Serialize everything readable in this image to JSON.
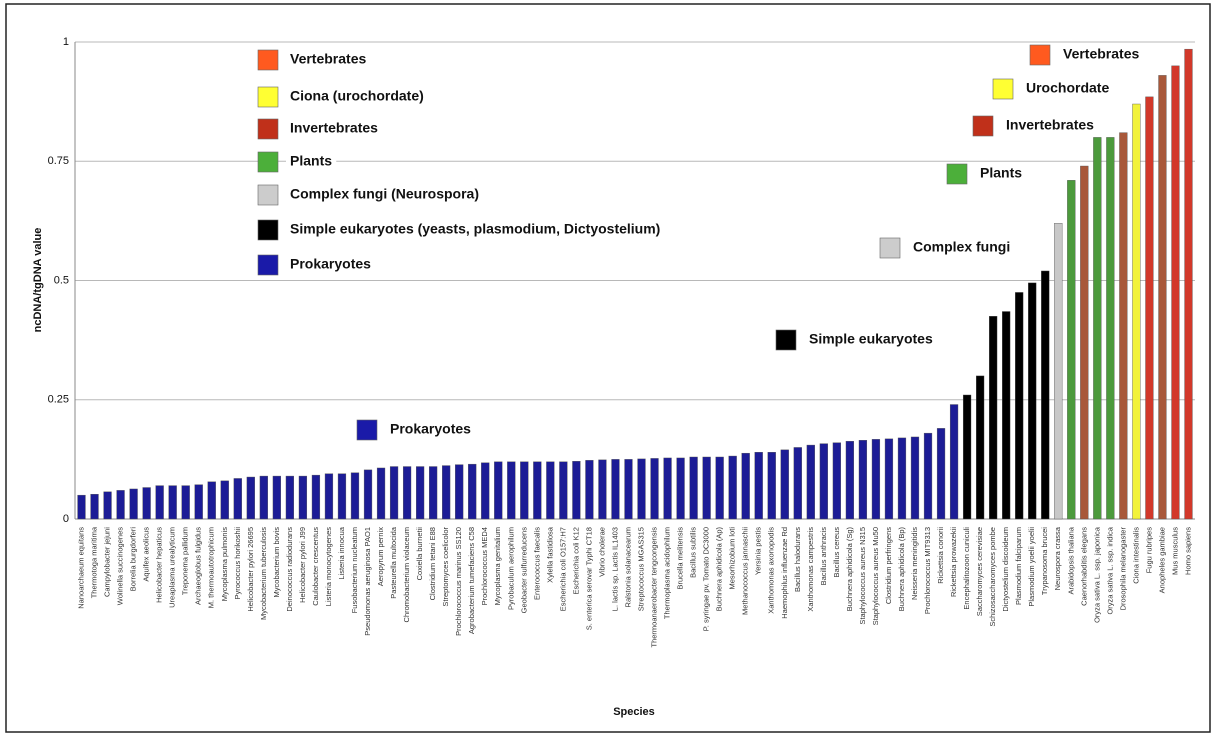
{
  "chart_data": {
    "type": "bar",
    "x_label": "Species",
    "y_label": "ncDNA/tgDNA value",
    "ylim": [
      0,
      1
    ],
    "yticks": [
      0,
      0.25,
      0.5,
      0.75,
      1
    ],
    "grid": true,
    "categories": [
      "Nanoarchaeum equitans",
      "Thermotoga maritima",
      "Campylobacter jejuni",
      "Wolinella succinogenes",
      "Borrelia burgdorferi",
      "Aquifex aeolicus",
      "Helicobacter hepaticus",
      "Ureaplasma urealyticum",
      "Treponema pallidum",
      "Archaeoglobus fulgidus",
      "M. thermoautotrophicum",
      "Mycoplasma pulmonis",
      "Pyrococcus horikoshii",
      "Helicobacter pylori 26695",
      "Mycobacterium tuberculosis",
      "Mycobacterium bovis",
      "Deinococcus radiodurans",
      "Helicobacter pylori J99",
      "Caulobacter crescentus",
      "Listeria monocytogenes",
      "Listeria innocua",
      "Fusobacterium nucleatum",
      "Pseudomonas aeruginosa PAO1",
      "Aeropyrum pernix",
      "Pasteurella multocida",
      "Chromobacterium violaceum",
      "Coxiella burnetii",
      "Clostridium tetani E88",
      "Streptomyces coelicolor",
      "Prochlorococcus marinus SS120",
      "Agrobacterium tumefaciens C58",
      "Prochlorococcus MED4",
      "Mycoplasma genitalium",
      "Pyrobaculum aerophilum",
      "Geobacter sulfurreducens",
      "Enterococcus faecalis",
      "Xylella fastidiosa",
      "Escherichia coli O157:H7",
      "Escherichia coli K12",
      "S. enterica serovar Typhi CT18",
      "Vibrio cholerae",
      "L. lactis sp. Lactis IL1403",
      "Ralstonia solanacearum",
      "Streptococcus MGAS315",
      "Thermoanaerobacter tengcongensis",
      "Thermoplasma acidophilum",
      "Brucella melitensis",
      "Bacillus subtilis",
      "P. syringae pv. Tomato DC3000",
      "Buchnera aphidicola (Ap)",
      "Mesorhizobium loti",
      "Methanococcus jannaschii",
      "Yersinia pestis",
      "Xanthomonas axonopodis",
      "Haemophilus influenzae Rd",
      "Bacillus halodurans",
      "Xanthomonas campestris",
      "Bacillus anthracis",
      "Bacillus cereus",
      "Buchnera aphidicola (Sg)",
      "Staphylococcus aureus N315",
      "Staphylococcus aureus Mu50",
      "Clostridium perfringens",
      "Buchnera aphidicola (Bp)",
      "Neisseria meningitidis",
      "Prochlorococcus MIT9313",
      "Rickettsia conorii",
      "Rickettsia prowazekii",
      "Encephalitozoon cuniculi",
      "Saccharomyces cerevisiae",
      "Schizosaccharomyces pombe",
      "Dictyostelium discoideum",
      "Plasmodium falciparum",
      "Plasmodium yoelii yoelii",
      "Trypanosoma brucei",
      "Neurospora crassa",
      "Arabidopsis thaliana",
      "Caenorhabditis elegans",
      "Oryza sativa L. ssp. japonica",
      "Oryza sativa L. ssp. indica",
      "Drosophila melanogaster",
      "Ciona intestinalis",
      "Fugu rubripes",
      "Anopheles gambiae",
      "Mus musculus",
      "Homo sapiens"
    ],
    "values": [
      0.05,
      0.052,
      0.057,
      0.06,
      0.063,
      0.066,
      0.07,
      0.07,
      0.07,
      0.072,
      0.078,
      0.08,
      0.085,
      0.088,
      0.09,
      0.09,
      0.09,
      0.09,
      0.092,
      0.095,
      0.095,
      0.097,
      0.103,
      0.107,
      0.11,
      0.11,
      0.11,
      0.11,
      0.112,
      0.114,
      0.115,
      0.118,
      0.12,
      0.12,
      0.12,
      0.12,
      0.12,
      0.12,
      0.121,
      0.123,
      0.124,
      0.125,
      0.125,
      0.126,
      0.127,
      0.128,
      0.128,
      0.13,
      0.13,
      0.13,
      0.132,
      0.138,
      0.14,
      0.14,
      0.145,
      0.15,
      0.155,
      0.158,
      0.16,
      0.163,
      0.165,
      0.167,
      0.168,
      0.17,
      0.172,
      0.18,
      0.19,
      0.24,
      0.26,
      0.3,
      0.425,
      0.435,
      0.475,
      0.495,
      0.52,
      0.62,
      0.71,
      0.74,
      0.8,
      0.8,
      0.81,
      0.87,
      0.885,
      0.93,
      0.95,
      0.985
    ],
    "colors": [
      "#1c1c96",
      "#1c1c96",
      "#1c1c96",
      "#1c1c96",
      "#1c1c96",
      "#1c1c96",
      "#1c1c96",
      "#1c1c96",
      "#1c1c96",
      "#1c1c96",
      "#1c1c96",
      "#1c1c96",
      "#1c1c96",
      "#1c1c96",
      "#1c1c96",
      "#1c1c96",
      "#1c1c96",
      "#1c1c96",
      "#1c1c96",
      "#1c1c96",
      "#1c1c96",
      "#1c1c96",
      "#1c1c96",
      "#1c1c96",
      "#1c1c96",
      "#1c1c96",
      "#1c1c96",
      "#1c1c96",
      "#1c1c96",
      "#1c1c96",
      "#1c1c96",
      "#1c1c96",
      "#1c1c96",
      "#1c1c96",
      "#1c1c96",
      "#1c1c96",
      "#1c1c96",
      "#1c1c96",
      "#1c1c96",
      "#1c1c96",
      "#1c1c96",
      "#1c1c96",
      "#1c1c96",
      "#1c1c96",
      "#1c1c96",
      "#1c1c96",
      "#1c1c96",
      "#1c1c96",
      "#1c1c96",
      "#1c1c96",
      "#1c1c96",
      "#1c1c96",
      "#1c1c96",
      "#1c1c96",
      "#1c1c96",
      "#1c1c96",
      "#1c1c96",
      "#1c1c96",
      "#1c1c96",
      "#1c1c96",
      "#1c1c96",
      "#1c1c96",
      "#1c1c96",
      "#1c1c96",
      "#1c1c96",
      "#1c1c96",
      "#1c1c96",
      "#1c1c96",
      "#000000",
      "#000000",
      "#000000",
      "#000000",
      "#000000",
      "#000000",
      "#000000",
      "#c8c8c8",
      "#4c9a3c",
      "#a8583a",
      "#4c9a3c",
      "#4c9a3c",
      "#a8583a",
      "#f2f23a",
      "#d2382a",
      "#a8583a",
      "#d2382a",
      "#d2382a"
    ],
    "legend": [
      {
        "label": "Vertebrates",
        "color": "#ff5a1f"
      },
      {
        "label": "Ciona (urochordate)",
        "color": "#ffff33"
      },
      {
        "label": "Invertebrates",
        "color": "#c0301a"
      },
      {
        "label": "Plants",
        "color": "#4caf3a"
      },
      {
        "label": "Complex fungi (Neurospora)",
        "color": "#cccccc"
      },
      {
        "label": "Simple eukaryotes (yeasts, plasmodium, Dictyostelium)",
        "color": "#000000"
      },
      {
        "label": "Prokaryotes",
        "color": "#1a1aa8"
      }
    ],
    "annotations": [
      {
        "text": "Vertebrates",
        "color": "#ff5a1f"
      },
      {
        "text": "Urochordate",
        "color": "#ffff33"
      },
      {
        "text": "Invertebrates",
        "color": "#c0301a"
      },
      {
        "text": "Plants",
        "color": "#4caf3a"
      },
      {
        "text": "Complex fungi",
        "color": "#cccccc"
      },
      {
        "text": "Simple eukaryotes",
        "color": "#000000"
      },
      {
        "text": "Prokaryotes",
        "color": "#1a1aa8"
      }
    ]
  }
}
